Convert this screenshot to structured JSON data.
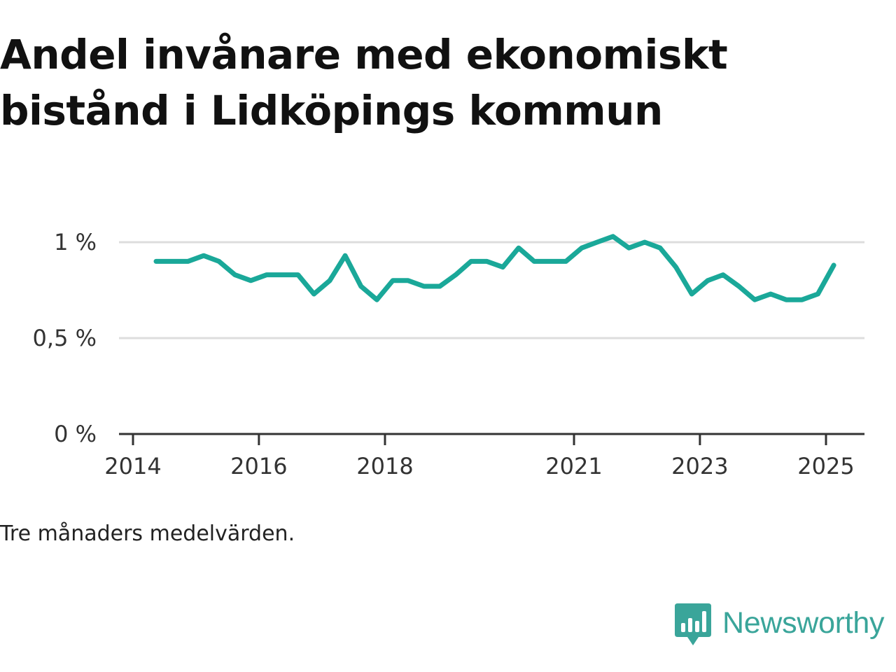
{
  "title": "Andel invånare med ekonomiskt bistånd i Lidköpings kommun",
  "note": "Tre månaders medelvärden.",
  "brand": {
    "name": "Newsworthy",
    "icon": "bar-chart-speech-bubble-icon",
    "color": "#3aa59a"
  },
  "chart_data": {
    "type": "line",
    "series": [
      {
        "color": "#1aa899",
        "x": [
          "2014-05-15",
          "2014-08-15",
          "2014-11-15",
          "2015-02-15",
          "2015-05-15",
          "2015-08-15",
          "2015-11-15",
          "2016-02-15",
          "2016-05-15",
          "2016-08-15",
          "2016-11-15",
          "2017-02-15",
          "2017-05-15",
          "2017-08-15",
          "2017-11-15",
          "2018-02-15",
          "2018-05-15",
          "2018-08-15",
          "2018-11-15",
          "2019-02-15",
          "2019-05-15",
          "2019-08-15",
          "2019-11-15",
          "2020-02-15",
          "2020-05-15",
          "2020-08-15",
          "2020-11-15",
          "2021-02-15",
          "2021-05-15",
          "2021-08-15",
          "2021-11-15",
          "2022-02-15",
          "2022-05-15",
          "2022-08-15",
          "2022-11-15",
          "2023-02-15",
          "2023-05-15",
          "2023-08-15",
          "2023-11-15",
          "2024-02-15",
          "2024-05-15",
          "2024-08-15",
          "2024-11-15",
          "2025-02-15"
        ],
        "values": [
          0.9,
          0.9,
          0.9,
          0.93,
          0.9,
          0.83,
          0.8,
          0.83,
          0.83,
          0.83,
          0.73,
          0.8,
          0.93,
          0.77,
          0.7,
          0.8,
          0.8,
          0.77,
          0.77,
          0.83,
          0.9,
          0.9,
          0.87,
          0.97,
          0.9,
          0.9,
          0.9,
          0.97,
          1.0,
          1.03,
          0.97,
          1.0,
          0.97,
          0.87,
          0.73,
          0.8,
          0.83,
          0.77,
          0.7,
          0.73,
          0.7,
          0.7,
          0.73,
          0.88
        ]
      }
    ],
    "y_ticks": [
      {
        "value": 0,
        "label": "0 %"
      },
      {
        "value": 0.5,
        "label": "0,5 %"
      },
      {
        "value": 1,
        "label": "1 %"
      }
    ],
    "x_ticks": [
      {
        "date": "2014-01-01",
        "label": "2014"
      },
      {
        "date": "2016-01-01",
        "label": "2016"
      },
      {
        "date": "2018-01-01",
        "label": "2018"
      },
      {
        "date": "2021-01-01",
        "label": "2021"
      },
      {
        "date": "2023-01-01",
        "label": "2023"
      },
      {
        "date": "2025-01-01",
        "label": "2025"
      }
    ],
    "xlim": [
      "2013-11-01",
      "2025-08-01"
    ],
    "ylim": [
      0,
      1.1
    ],
    "grid": "horizontal"
  }
}
